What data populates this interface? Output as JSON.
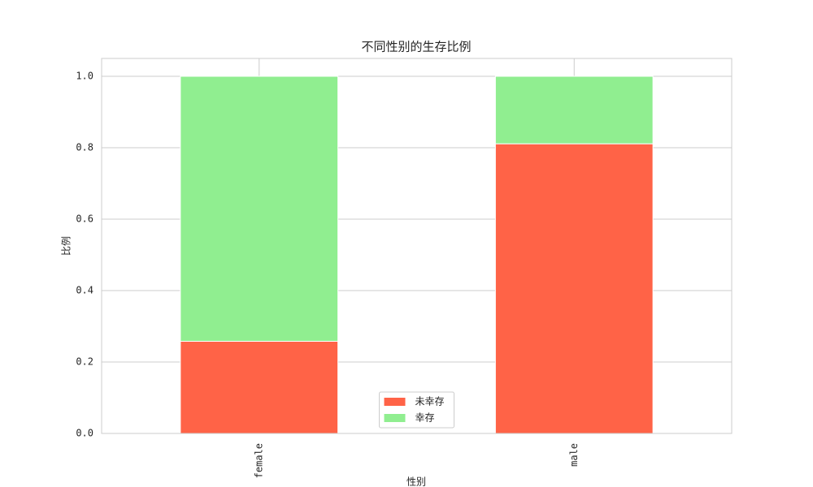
{
  "chart_data": {
    "type": "stacked-bar",
    "title": "不同性别的生存比例",
    "x_label": "性别",
    "y_label": "比例",
    "categories": [
      "female",
      "male"
    ],
    "series": [
      {
        "name": "未幸存",
        "color": "#ff6347",
        "values": [
          0.258,
          0.811
        ]
      },
      {
        "name": "幸存",
        "color": "#90ee90",
        "values": [
          0.742,
          0.189
        ]
      }
    ],
    "ylim": [
      0,
      1.05
    ],
    "yticks": [
      {
        "value": 0,
        "label": "0.0"
      },
      0.2,
      0.4,
      0.6,
      0.8,
      {
        "value": 1,
        "label": "1.0"
      }
    ],
    "grid": true,
    "legend": "lower center"
  }
}
